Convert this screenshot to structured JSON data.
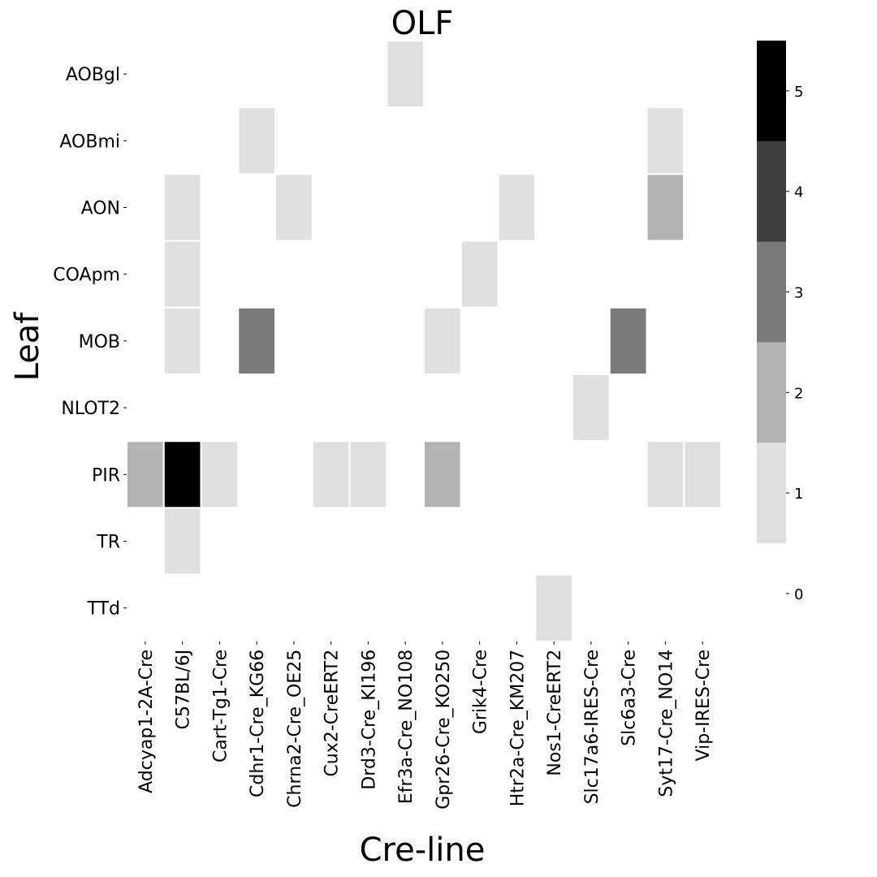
{
  "chart_data": {
    "type": "heatmap",
    "title": "OLF",
    "xlabel": "Cre-line",
    "ylabel": "Leaf",
    "x_categories": [
      "Adcyap1-2A-Cre",
      "C57BL/6J",
      "Cart-Tg1-Cre",
      "Cdhr1-Cre_KG66",
      "Chrna2-Cre_OE25",
      "Cux2-CreERT2",
      "Drd3-Cre_KI196",
      "Efr3a-Cre_NO108",
      "Gpr26-Cre_KO250",
      "Grik4-Cre",
      "Htr2a-Cre_KM207",
      "Nos1-CreERT2",
      "Slc17a6-IRES-Cre",
      "Slc6a3-Cre",
      "Syt17-Cre_NO14",
      "Vip-IRES-Cre"
    ],
    "y_categories": [
      "AOBgl",
      "AOBmi",
      "AON",
      "COApm",
      "MOB",
      "NLOT2",
      "PIR",
      "TR",
      "TTd"
    ],
    "values": [
      [
        0,
        0,
        0,
        0,
        0,
        0,
        0,
        1,
        0,
        0,
        0,
        0,
        0,
        0,
        0,
        0
      ],
      [
        0,
        0,
        0,
        1,
        0,
        0,
        0,
        0,
        0,
        0,
        0,
        0,
        0,
        0,
        1,
        0
      ],
      [
        0,
        1,
        0,
        0,
        1,
        0,
        0,
        0,
        0,
        0,
        1,
        0,
        0,
        0,
        2,
        0
      ],
      [
        0,
        1,
        0,
        0,
        0,
        0,
        0,
        0,
        0,
        1,
        0,
        0,
        0,
        0,
        0,
        0
      ],
      [
        0,
        1,
        0,
        3,
        0,
        0,
        0,
        0,
        1,
        0,
        0,
        0,
        0,
        3,
        0,
        0
      ],
      [
        0,
        0,
        0,
        0,
        0,
        0,
        0,
        0,
        0,
        0,
        0,
        0,
        1,
        0,
        0,
        0
      ],
      [
        2,
        5,
        1,
        0,
        0,
        1,
        1,
        0,
        2,
        0,
        0,
        0,
        0,
        0,
        1,
        1
      ],
      [
        0,
        1,
        0,
        0,
        0,
        0,
        0,
        0,
        0,
        0,
        0,
        0,
        0,
        0,
        0,
        0
      ],
      [
        0,
        0,
        0,
        0,
        0,
        0,
        0,
        0,
        0,
        0,
        0,
        1,
        0,
        0,
        0,
        0
      ]
    ],
    "colorbar": {
      "ticks": [
        0,
        1,
        2,
        3,
        4,
        5
      ],
      "colors": [
        "#ffffff",
        "#e0e0e0",
        "#b3b3b3",
        "#7a7a7a",
        "#404040",
        "#000000"
      ]
    },
    "grid": false,
    "legend": "colorbar-right"
  }
}
